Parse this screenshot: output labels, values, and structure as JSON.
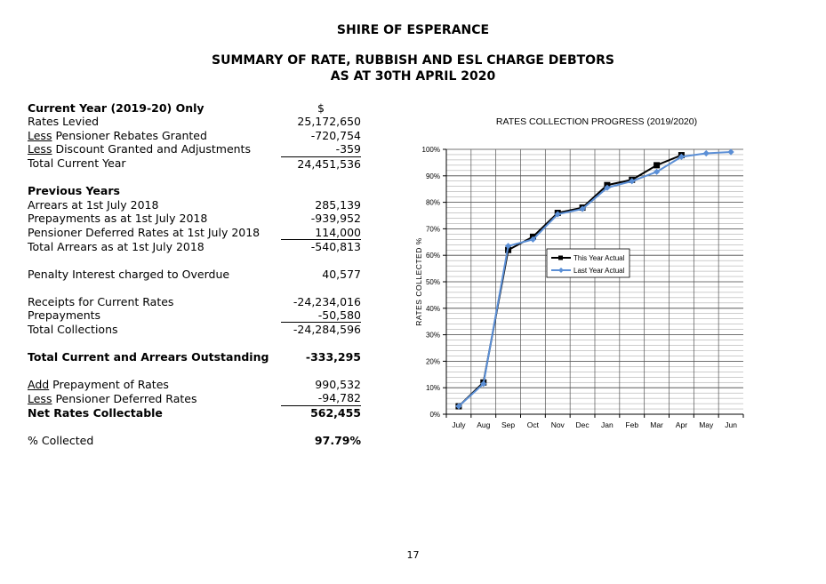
{
  "header": {
    "org": "SHIRE OF ESPERANCE",
    "title": "SUMMARY OF RATE, RUBBISH AND ESL CHARGE DEBTORS",
    "subtitle": "AS AT 30TH APRIL 2020"
  },
  "summary": {
    "currency_symbol": "$",
    "current_heading": "Current Year (2019-20) Only",
    "rates_levied": {
      "label": "Rates Levied",
      "value": "25,172,650"
    },
    "pensioner_rebates": {
      "prefix": "Less",
      "label": " Pensioner Rebates Granted",
      "value": "-720,754"
    },
    "discount": {
      "prefix": "Less",
      "label": " Discount Granted and Adjustments",
      "value": "-359"
    },
    "total_current": {
      "label": "Total Current Year",
      "value": "24,451,536"
    },
    "previous_heading": "Previous Years",
    "arrears": {
      "label": "Arrears at 1st July 2018",
      "value": "285,139"
    },
    "prepayments_july": {
      "label": "Prepayments as at 1st July 2018",
      "value": "-939,952"
    },
    "pensioner_deferred": {
      "label": "Pensioner Deferred Rates at 1st July 2018",
      "value": "114,000"
    },
    "total_arrears": {
      "label": "Total Arrears as at 1st July 2018",
      "value": "-540,813"
    },
    "penalty": {
      "label": "Penalty Interest charged to Overdue",
      "value": "40,577"
    },
    "receipts": {
      "label": "Receipts for Current Rates",
      "value": "-24,234,016"
    },
    "prepayments": {
      "label": "Prepayments",
      "value": "-50,580"
    },
    "total_collections": {
      "label": "Total Collections",
      "value": "-24,284,596"
    },
    "outstanding": {
      "label": "Total Current and Arrears Outstanding",
      "value": "-333,295"
    },
    "add_prepayment": {
      "prefix": "Add",
      "label": " Prepayment of Rates",
      "value": "990,532"
    },
    "less_deferred": {
      "prefix": "Less",
      "label": " Pensioner Deferred Rates",
      "value": "-94,782"
    },
    "net_collectable": {
      "label": "Net Rates Collectable",
      "value": "562,455"
    },
    "pct_collected": {
      "label": "% Collected",
      "value": "97.79%"
    }
  },
  "page_number": "17",
  "chart_data": {
    "type": "line",
    "title": "RATES COLLECTION PROGRESS (2019/2020)",
    "ylabel": "RATES COLLECTED %",
    "xlabel": "",
    "categories": [
      "July",
      "Aug",
      "Sep",
      "Oct",
      "Nov",
      "Dec",
      "Jan",
      "Feb",
      "Mar",
      "Apr",
      "May",
      "Jun"
    ],
    "ylim": [
      0,
      100
    ],
    "yticks": [
      "0%",
      "10%",
      "20%",
      "30%",
      "40%",
      "50%",
      "60%",
      "70%",
      "80%",
      "90%",
      "100%"
    ],
    "grid": true,
    "legend_position": "center-right",
    "series": [
      {
        "name": "This Year Actual",
        "color": "#000000",
        "marker": "square",
        "values": [
          3,
          12,
          62,
          67,
          76,
          78,
          86.5,
          88.5,
          94,
          97.8,
          null,
          null
        ]
      },
      {
        "name": "Last Year Actual",
        "color": "#5b8fd6",
        "marker": "diamond",
        "values": [
          3,
          11.5,
          63.5,
          66,
          75.5,
          77.5,
          85.5,
          88,
          91.5,
          97.2,
          98.5,
          99
        ]
      }
    ]
  }
}
